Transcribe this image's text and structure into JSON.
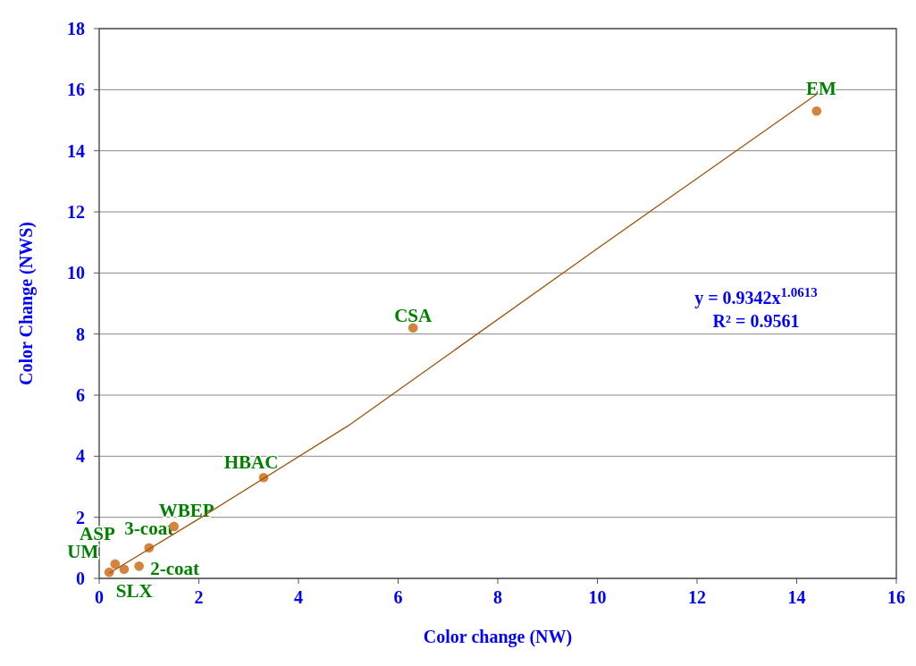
{
  "chart_data": {
    "type": "scatter",
    "xlabel": "Color change (NW)",
    "ylabel": "Color Change (NWS)",
    "xlim": [
      0,
      16
    ],
    "ylim": [
      0,
      18
    ],
    "xticks": [
      0,
      2,
      4,
      6,
      8,
      10,
      12,
      14,
      16
    ],
    "yticks": [
      0,
      2,
      4,
      6,
      8,
      10,
      12,
      14,
      16,
      18
    ],
    "grid": "y",
    "marker": "circle",
    "series": [
      {
        "color": "#d4843c",
        "x": [
          14.4,
          6.3,
          3.3,
          1.5,
          1.0,
          0.5,
          0.32,
          0.8,
          0.2
        ],
        "values": [
          15.3,
          8.2,
          3.3,
          1.7,
          1.0,
          0.3,
          0.47,
          0.4,
          0.2
        ]
      },
      {
        "type": "line",
        "marker": "none",
        "color": "#a0520a",
        "x": [
          0.2,
          2,
          5,
          10,
          14.4
        ],
        "values": [
          0.17,
          1.95,
          5.0,
          10.8,
          15.85
        ]
      }
    ],
    "annotations": [
      {
        "text": "EM",
        "x": 14.4,
        "y": 15.3
      },
      {
        "text": "CSA",
        "x": 6.3,
        "y": 8.2
      },
      {
        "text": "HBAC",
        "x": 3.3,
        "y": 3.3
      },
      {
        "text": "WBEP",
        "x": 1.5,
        "y": 1.7
      },
      {
        "text": "3-coat",
        "x": 1.0,
        "y": 1.0
      },
      {
        "text": "ASP",
        "x": 0.5,
        "y": 0.3
      },
      {
        "text": "UM",
        "x": 0.32,
        "y": 0.47
      },
      {
        "text": "2-coat",
        "x": 0.8,
        "y": 0.4
      },
      {
        "text": "SLX",
        "x": 0.2,
        "y": 0.2
      },
      "y = 0.9342x$^{1.0613}$",
      "R² = 0.9561"
    ]
  }
}
